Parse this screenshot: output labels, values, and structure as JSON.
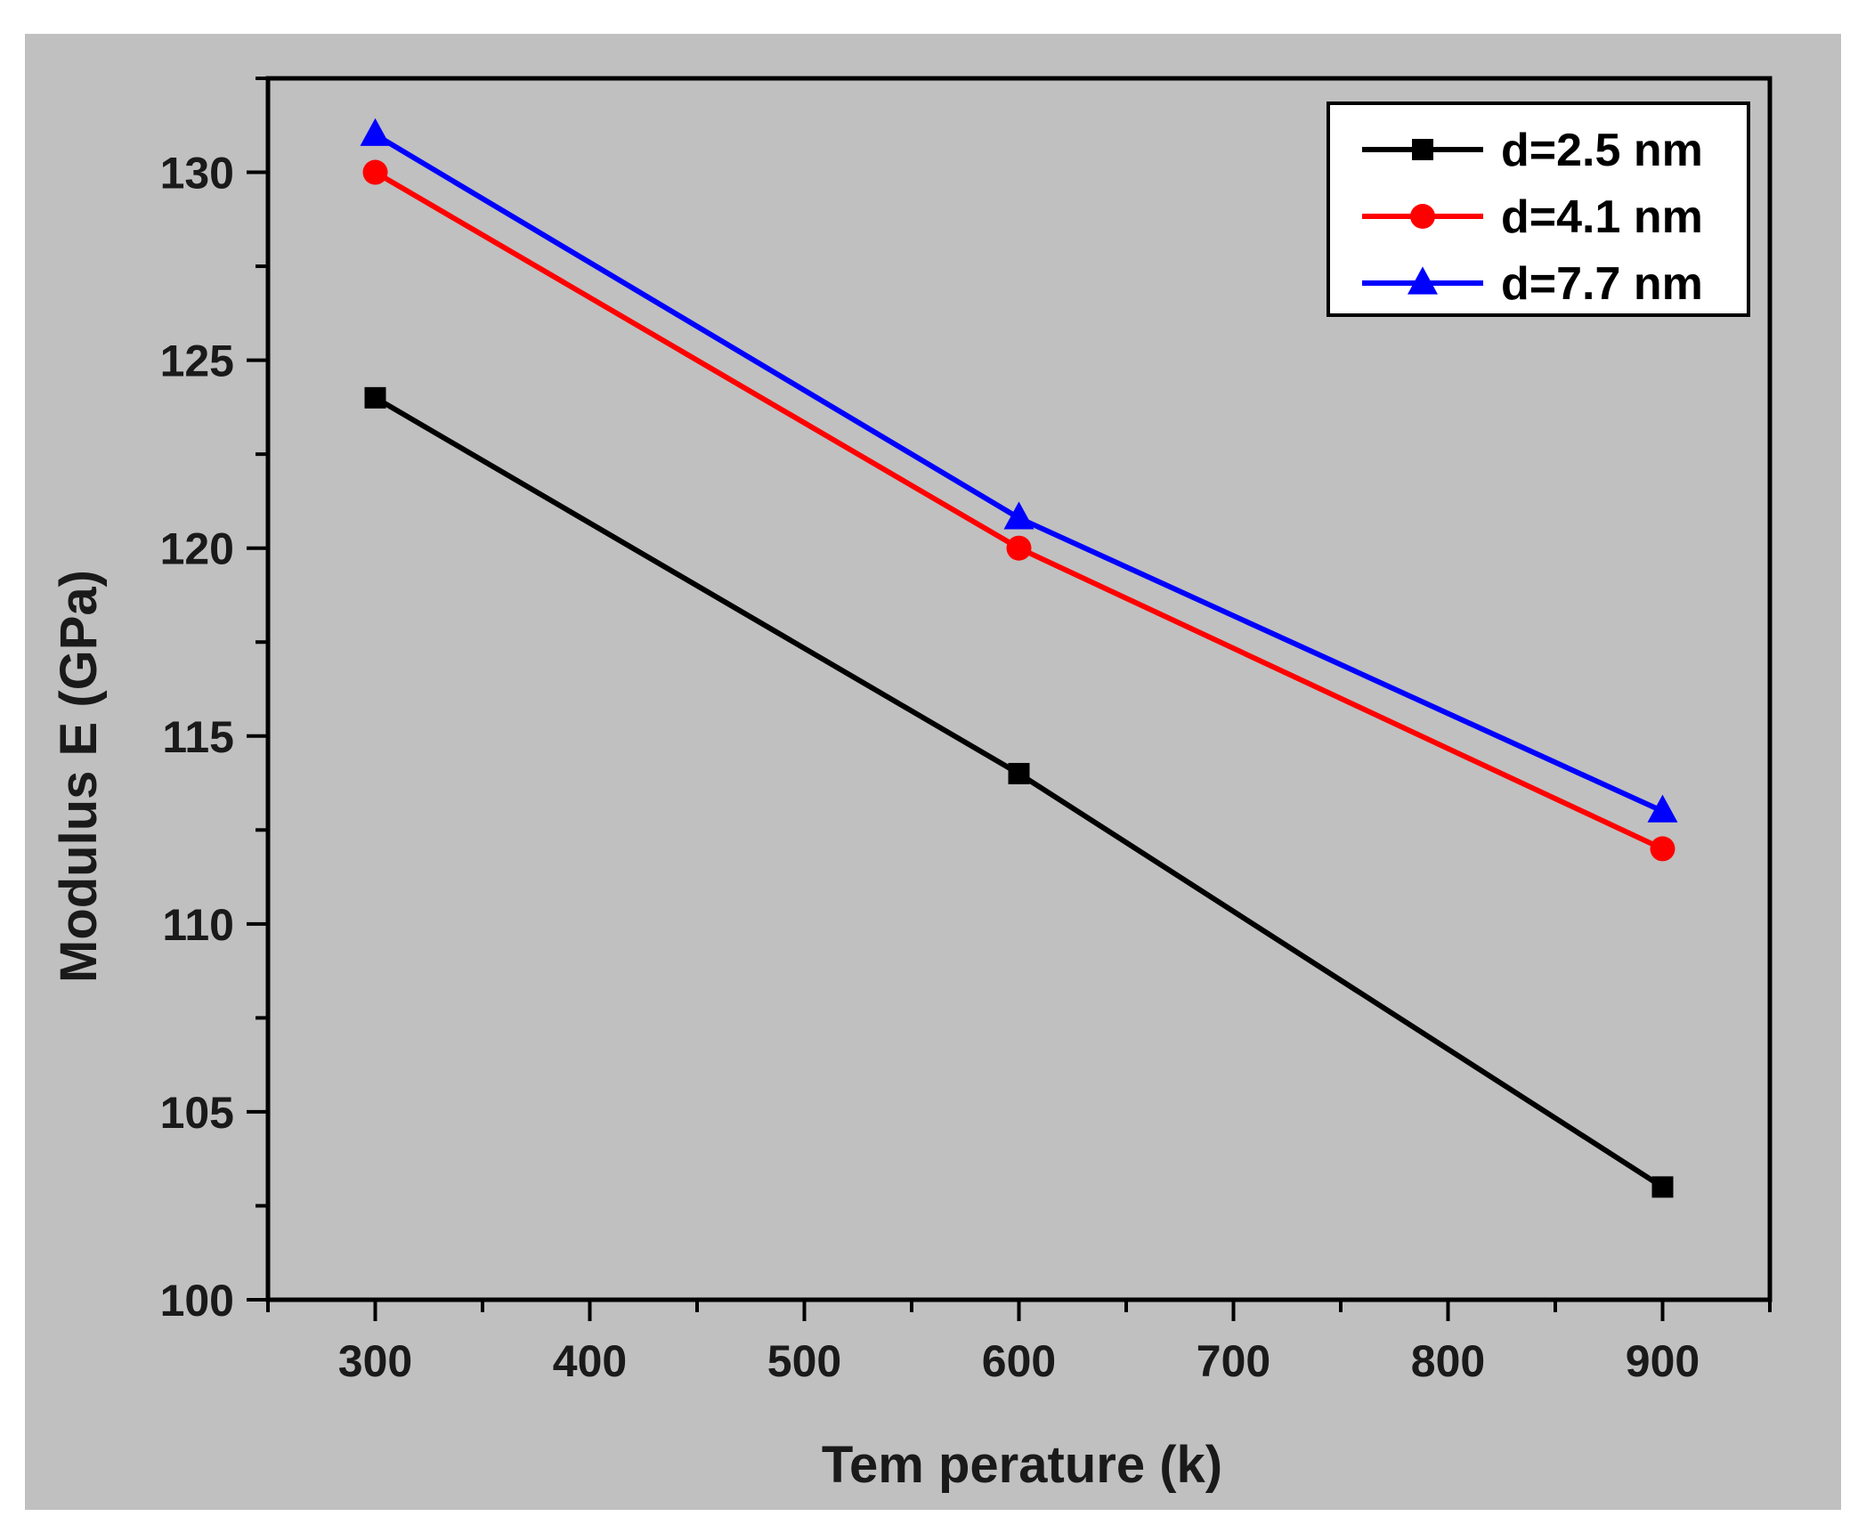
{
  "chart_data": {
    "type": "line",
    "xlabel": "Tem perature (k)",
    "ylabel": "Modulus E (GPa)",
    "xlim": [
      250,
      950
    ],
    "ylim": [
      100,
      132.5
    ],
    "x_major_ticks": [
      300,
      400,
      500,
      600,
      700,
      800,
      900
    ],
    "x_minor_ticks": [
      250,
      350,
      450,
      550,
      650,
      750,
      850,
      950
    ],
    "y_major_ticks": [
      100,
      105,
      110,
      115,
      120,
      125,
      130
    ],
    "y_minor_ticks": [
      102.5,
      107.5,
      112.5,
      117.5,
      122.5,
      127.5,
      132.5
    ],
    "grid": false,
    "legend_position": "top-right",
    "x": [
      300,
      600,
      900
    ],
    "series": [
      {
        "name": "d=2.5 nm",
        "values": [
          124,
          114,
          103
        ],
        "color": "#000000",
        "marker": "square"
      },
      {
        "name": "d=4.1 nm",
        "values": [
          130,
          120,
          112
        ],
        "color": "#ff0000",
        "marker": "circle"
      },
      {
        "name": "d=7.7 nm",
        "values": [
          131,
          120.8,
          113
        ],
        "color": "#0000ff",
        "marker": "triangle"
      }
    ],
    "background_color": "#c0c0c0",
    "axis_color": "#000000"
  }
}
